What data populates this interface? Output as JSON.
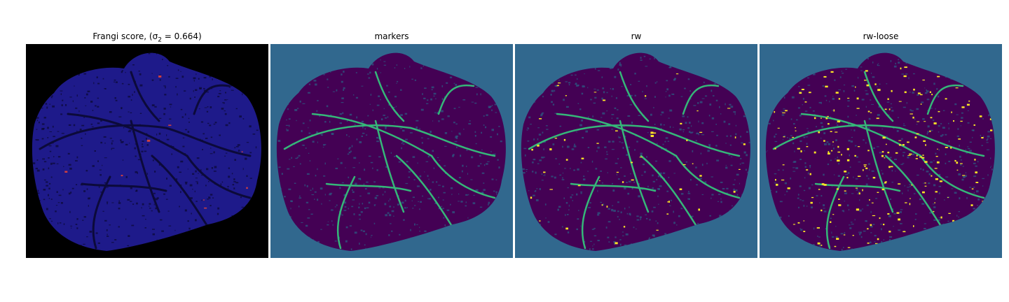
{
  "figure": {
    "panels": [
      {
        "id": "frangi",
        "title": "Frangi score, (σ",
        "title_sub": "2",
        "title_tail": " = 0.664)",
        "background": "#000000",
        "tissue": "#1e1a8a",
        "vessel": "#0c0a3a",
        "accent": "#d04040"
      },
      {
        "id": "markers",
        "title": "markers",
        "background": "#31688e",
        "tissue": "#440154",
        "vessel": "#35b779",
        "accent": "#31688e"
      },
      {
        "id": "rw",
        "title": "rw",
        "background": "#31688e",
        "tissue": "#440154",
        "vessel": "#35b779",
        "accent": "#fde725"
      },
      {
        "id": "rw-loose",
        "title": "rw-loose",
        "background": "#31688e",
        "tissue": "#440154",
        "vessel": "#35b779",
        "accent": "#fde725"
      }
    ]
  }
}
